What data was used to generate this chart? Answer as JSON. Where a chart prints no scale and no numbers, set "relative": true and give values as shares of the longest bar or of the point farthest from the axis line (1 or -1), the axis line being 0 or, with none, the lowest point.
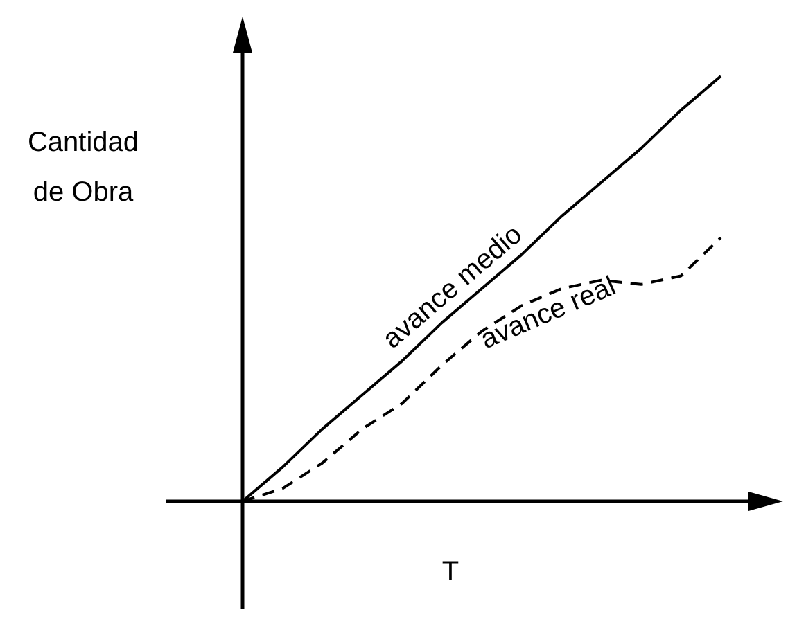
{
  "chart_data": {
    "type": "line",
    "relative": true,
    "xlabel": "T",
    "ylabel": "Cantidad de Obra",
    "legend": false,
    "grid": false,
    "marker": "none",
    "categories": [
      null,
      null,
      null,
      null,
      null,
      null,
      null,
      null,
      null,
      null,
      null,
      null,
      null
    ],
    "series": [
      {
        "name": "avance medio",
        "color": "#000000",
        "line_style": "solid",
        "values": [
          0,
          0.08,
          0.17,
          0.25,
          0.33,
          0.42,
          0.5,
          0.58,
          0.67,
          0.75,
          0.83,
          0.92,
          1
        ]
      },
      {
        "name": "avance real",
        "color": "#000000",
        "line_style": "dashed",
        "values": [
          0,
          0.03,
          0.09,
          0.17,
          0.23,
          0.32,
          0.4,
          0.46,
          0.5,
          0.52,
          0.51,
          0.53,
          0.62
        ]
      }
    ]
  }
}
